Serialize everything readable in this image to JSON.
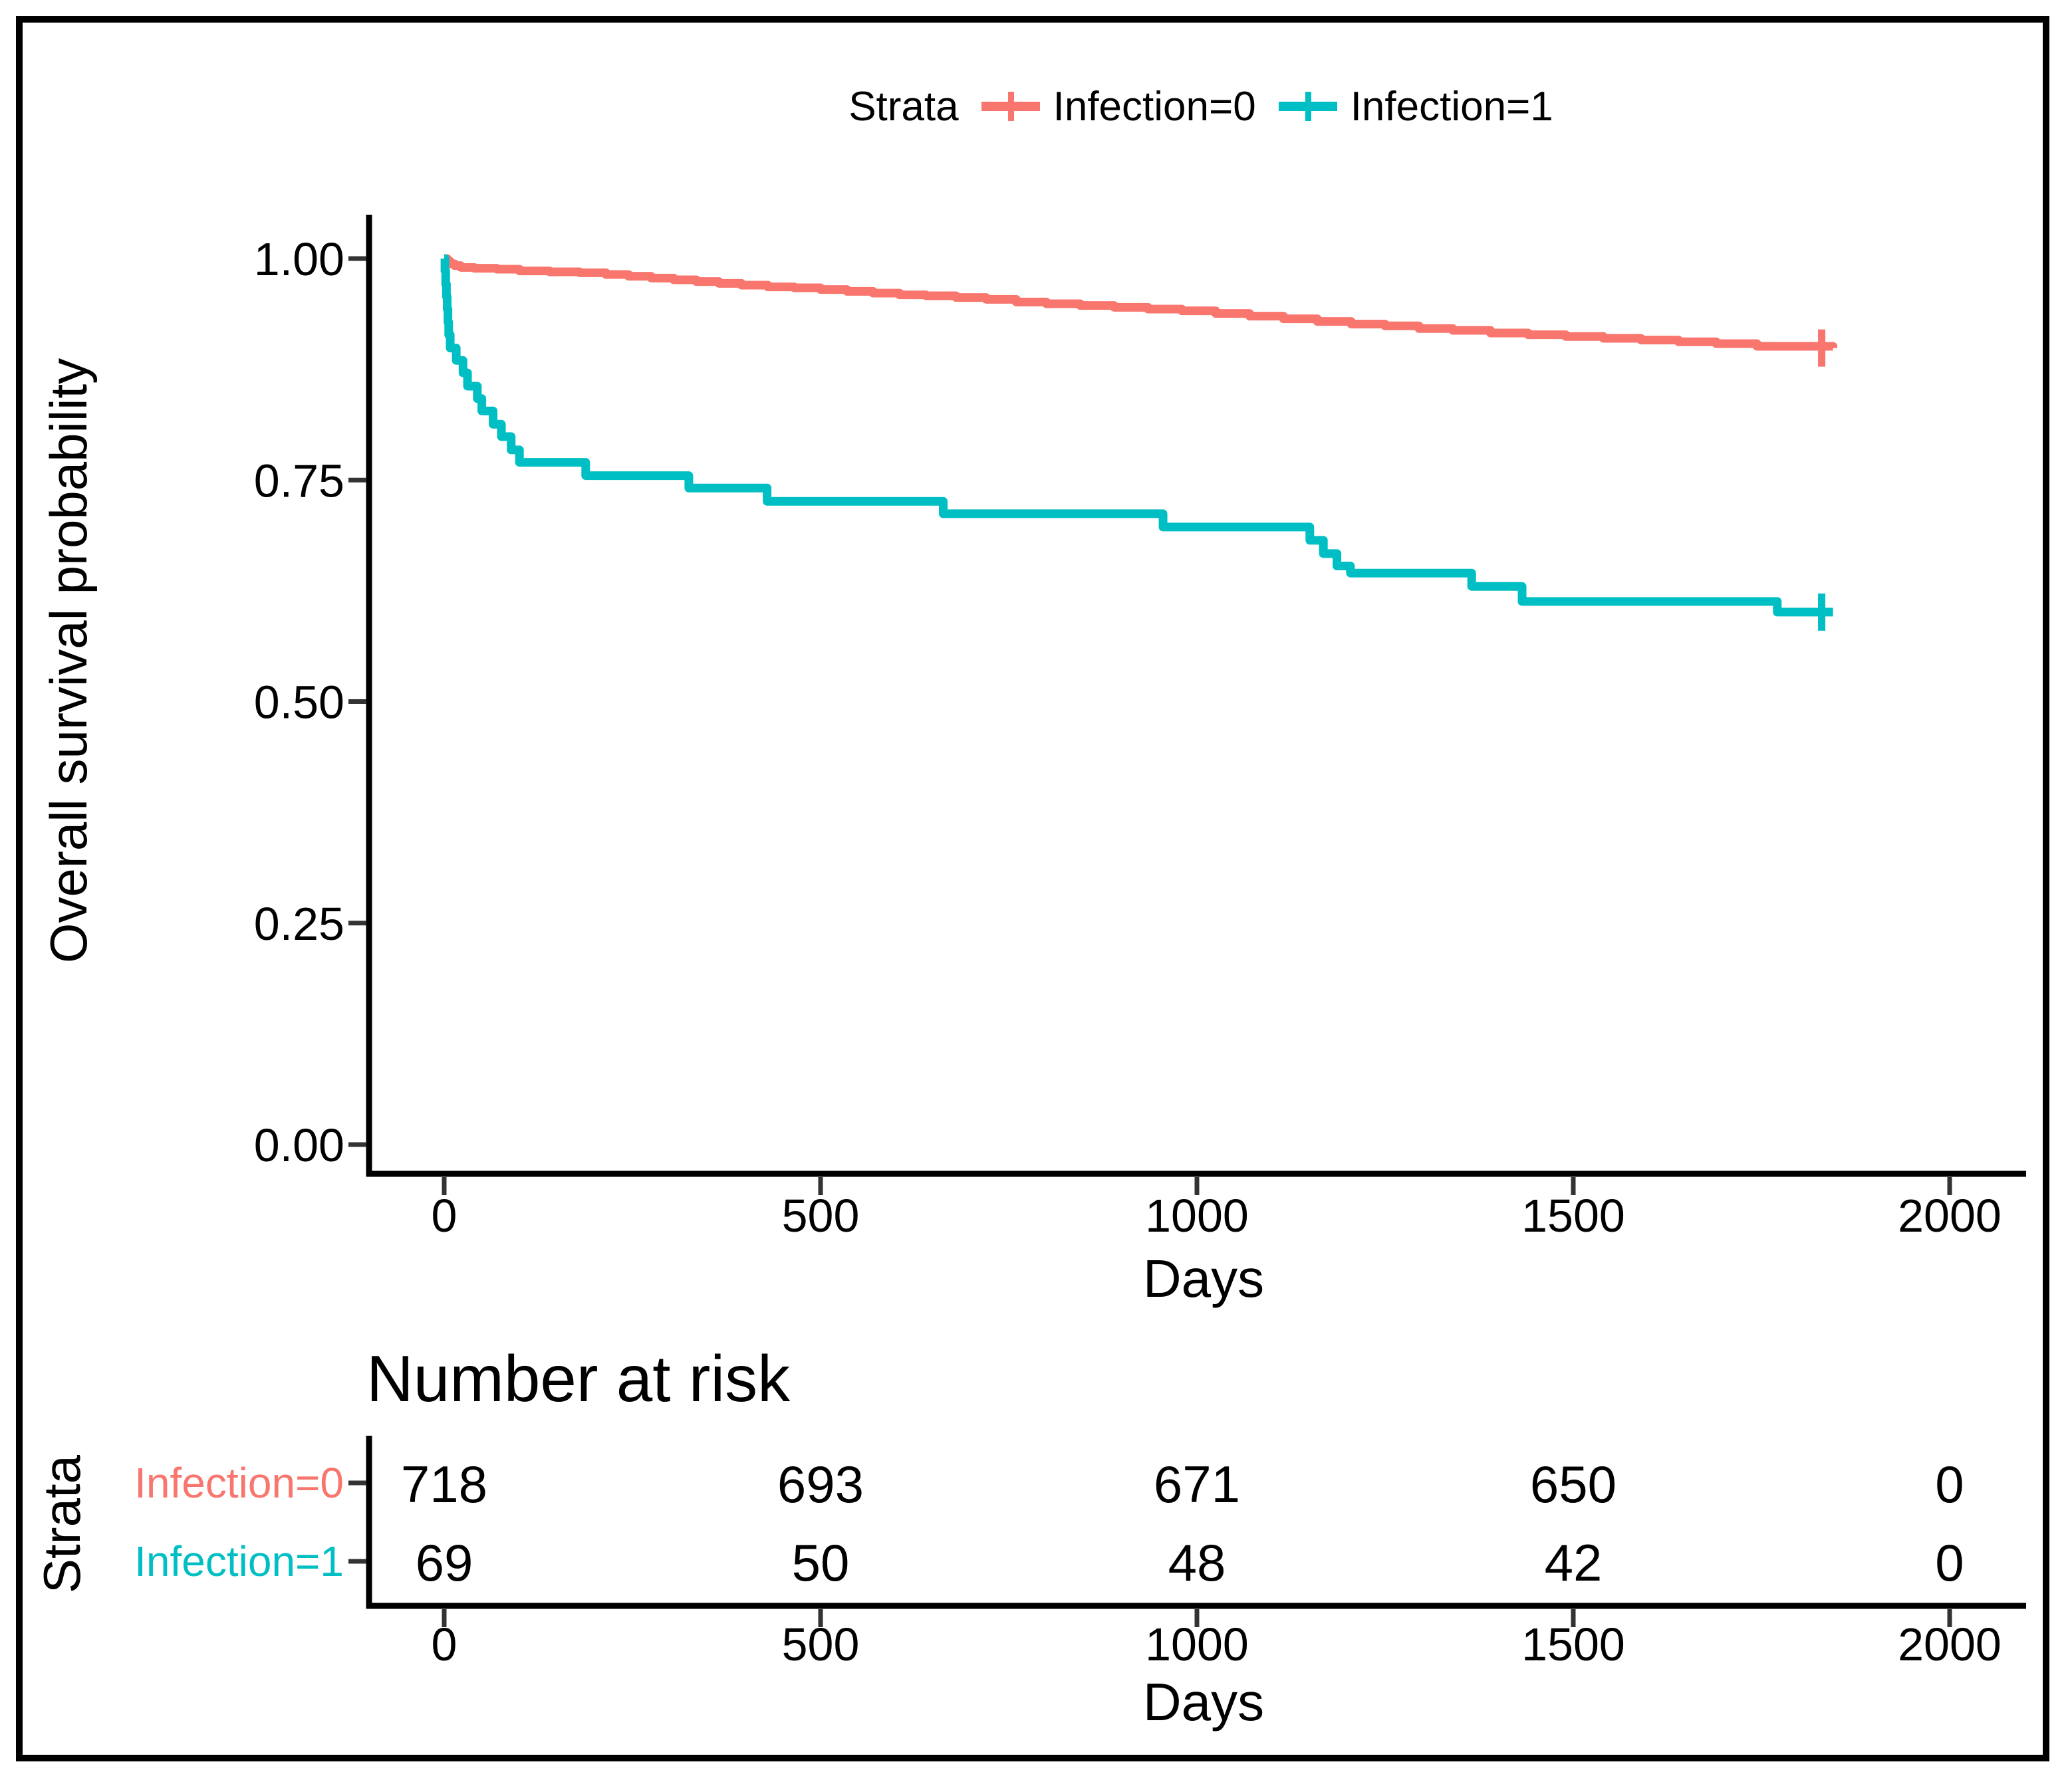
{
  "figure": {
    "legend": {
      "title": "Strata",
      "items": [
        {
          "label": "Infection=0",
          "color": "#F8766D"
        },
        {
          "label": "Infection=1",
          "color": "#00BFC4"
        }
      ]
    },
    "y_axis_title": "Overall survival probability",
    "x_axis_title": "Days",
    "risk_table": {
      "title": "Number at risk",
      "strata_axis_label": "Strata",
      "x_axis_title": "Days",
      "time_points": [
        0,
        500,
        1000,
        1500,
        2000
      ],
      "rows": [
        {
          "label": "Infection=0",
          "color": "#F8766D",
          "values": [
            "718",
            "693",
            "671",
            "650",
            "0"
          ]
        },
        {
          "label": "Infection=1",
          "color": "#00BFC4",
          "values": [
            "69",
            "50",
            "48",
            "42",
            "0"
          ]
        }
      ]
    }
  },
  "chart_data": {
    "type": "line",
    "subtype": "kaplan_meier_step",
    "title": "",
    "xlabel": "Days",
    "ylabel": "Overall survival probability",
    "xlim": [
      0,
      2000
    ],
    "ylim": [
      0.0,
      1.0
    ],
    "x_ticks": [
      0,
      500,
      1000,
      1500,
      2000
    ],
    "x_tick_labels": [
      "0",
      "500",
      "1000",
      "1500",
      "2000"
    ],
    "y_ticks": [
      0,
      0.25,
      0.5,
      0.75,
      1
    ],
    "y_tick_labels": [
      "0.00",
      "0.25",
      "0.50",
      "0.75",
      "1.00"
    ],
    "grid": "off",
    "legend_position": "top",
    "tick_color": "#333333",
    "axis_color": "#000000",
    "series": [
      {
        "name": "Infection=0",
        "color": "#F8766D",
        "censor": {
          "x": 1830,
          "y": 0.899
        },
        "points": [
          [
            0,
            1.0
          ],
          [
            4,
            0.997
          ],
          [
            8,
            0.994
          ],
          [
            14,
            0.992
          ],
          [
            22,
            0.99
          ],
          [
            40,
            0.989
          ],
          [
            70,
            0.988
          ],
          [
            100,
            0.986
          ],
          [
            140,
            0.985
          ],
          [
            180,
            0.984
          ],
          [
            215,
            0.982
          ],
          [
            245,
            0.98
          ],
          [
            275,
            0.978
          ],
          [
            305,
            0.976
          ],
          [
            335,
            0.974
          ],
          [
            365,
            0.972
          ],
          [
            395,
            0.97
          ],
          [
            430,
            0.968
          ],
          [
            465,
            0.967
          ],
          [
            500,
            0.965
          ],
          [
            535,
            0.963
          ],
          [
            570,
            0.961
          ],
          [
            605,
            0.959
          ],
          [
            640,
            0.958
          ],
          [
            680,
            0.956
          ],
          [
            720,
            0.954
          ],
          [
            760,
            0.951
          ],
          [
            800,
            0.949
          ],
          [
            845,
            0.947
          ],
          [
            890,
            0.945
          ],
          [
            935,
            0.943
          ],
          [
            980,
            0.941
          ],
          [
            1025,
            0.938
          ],
          [
            1070,
            0.935
          ],
          [
            1115,
            0.932
          ],
          [
            1160,
            0.929
          ],
          [
            1205,
            0.926
          ],
          [
            1250,
            0.924
          ],
          [
            1295,
            0.921
          ],
          [
            1340,
            0.919
          ],
          [
            1390,
            0.916
          ],
          [
            1440,
            0.914
          ],
          [
            1490,
            0.912
          ],
          [
            1540,
            0.91
          ],
          [
            1590,
            0.908
          ],
          [
            1640,
            0.906
          ],
          [
            1690,
            0.904
          ],
          [
            1744,
            0.901
          ],
          [
            1845,
            0.899
          ]
        ]
      },
      {
        "name": "Infection=1",
        "color": "#00BFC4",
        "censor": {
          "x": 1830,
          "y": 0.601
        },
        "points": [
          [
            0,
            1.0
          ],
          [
            1,
            0.986
          ],
          [
            2,
            0.971
          ],
          [
            3,
            0.957
          ],
          [
            4,
            0.943
          ],
          [
            5,
            0.928
          ],
          [
            6,
            0.914
          ],
          [
            8,
            0.899
          ],
          [
            16,
            0.885
          ],
          [
            25,
            0.871
          ],
          [
            31,
            0.856
          ],
          [
            44,
            0.842
          ],
          [
            50,
            0.828
          ],
          [
            65,
            0.813
          ],
          [
            76,
            0.799
          ],
          [
            89,
            0.784
          ],
          [
            100,
            0.77
          ],
          [
            188,
            0.755
          ],
          [
            325,
            0.741
          ],
          [
            429,
            0.726
          ],
          [
            663,
            0.712
          ],
          [
            955,
            0.697
          ],
          [
            1150,
            0.682
          ],
          [
            1168,
            0.667
          ],
          [
            1186,
            0.653
          ],
          [
            1204,
            0.645
          ],
          [
            1365,
            0.63
          ],
          [
            1432,
            0.613
          ],
          [
            1771,
            0.601
          ],
          [
            1845,
            0.601
          ]
        ]
      }
    ]
  }
}
